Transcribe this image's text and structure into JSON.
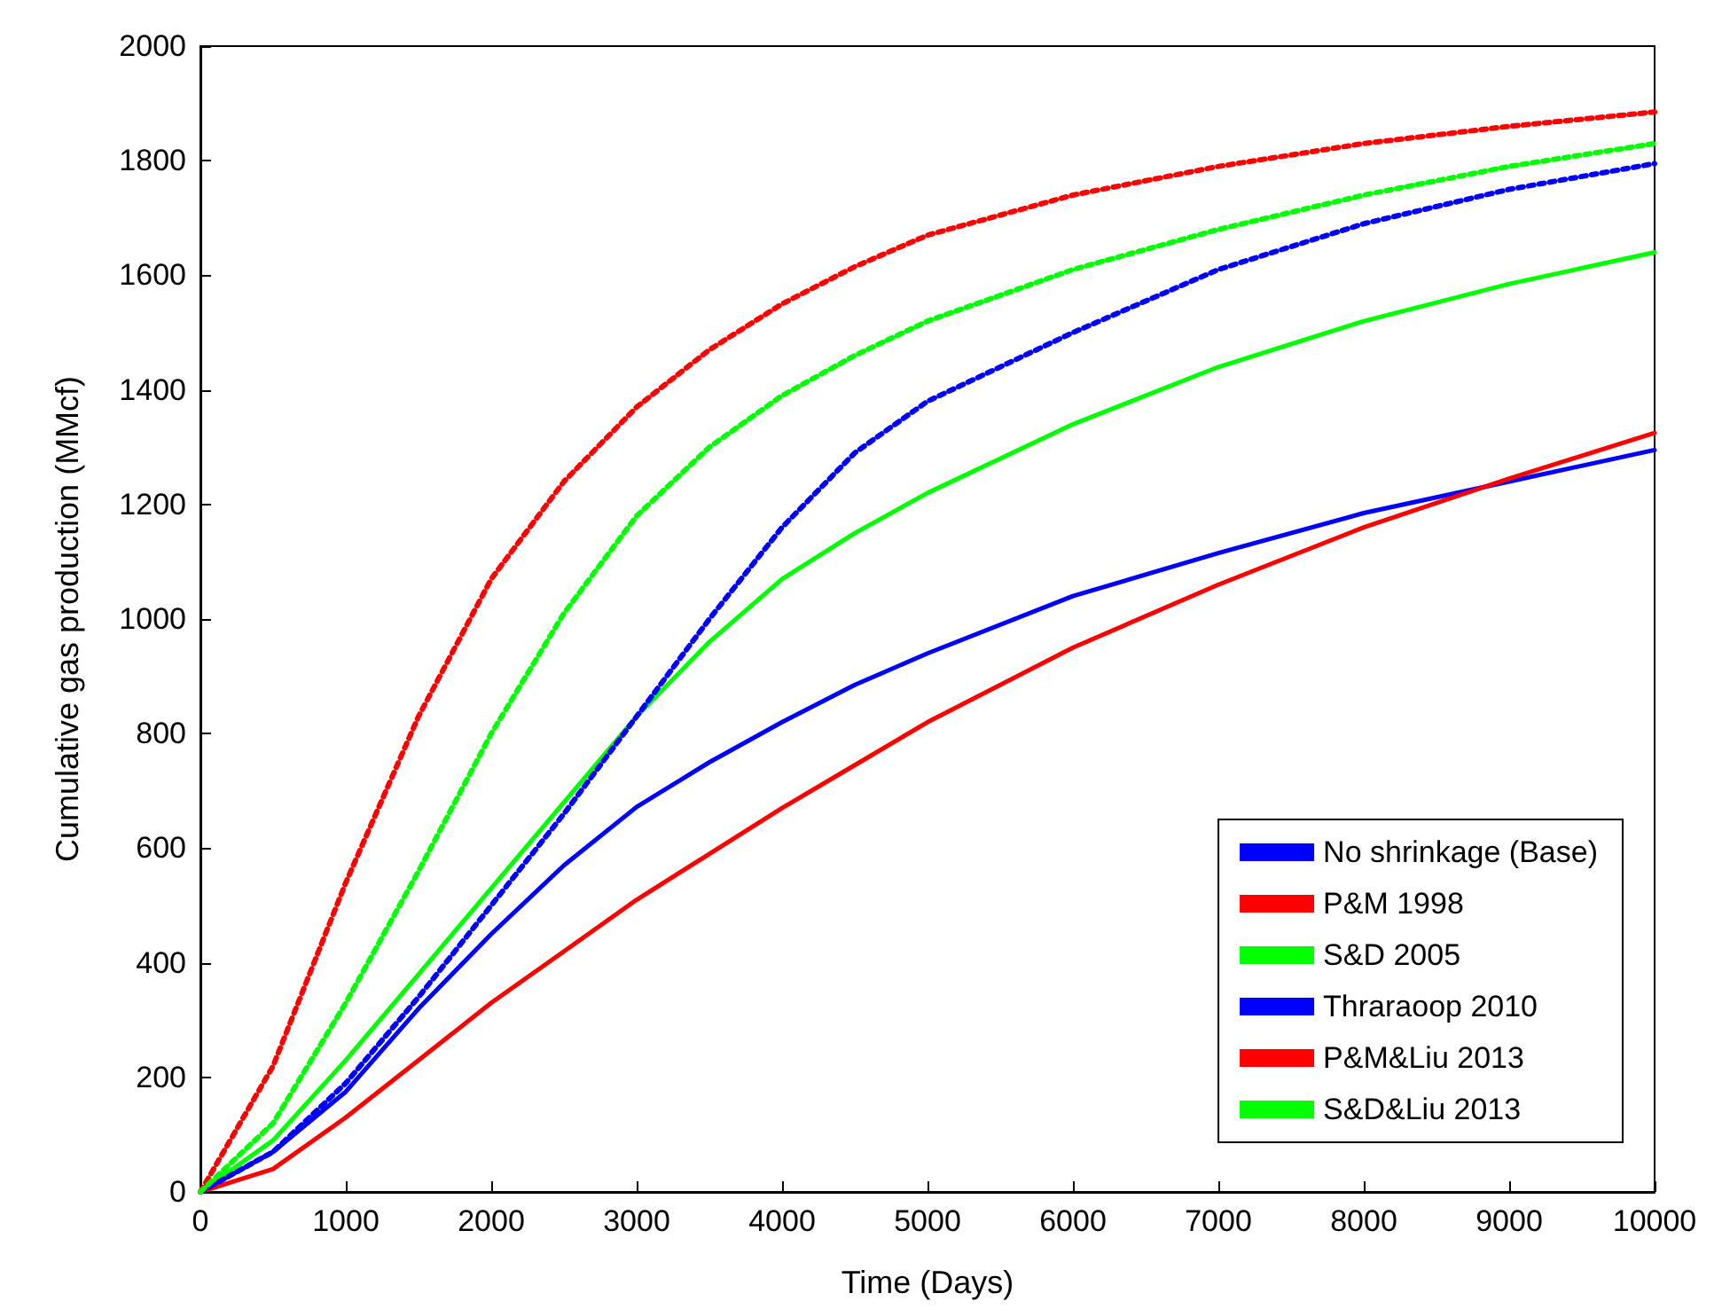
{
  "chart_data": {
    "type": "line",
    "xlabel": "Time (Days)",
    "ylabel": "Cumulative gas production (MMcf)",
    "x": [
      0,
      500,
      1000,
      1500,
      2000,
      2500,
      3000,
      3500,
      4000,
      4500,
      5000,
      6000,
      7000,
      8000,
      9000,
      10000
    ],
    "series": [
      {
        "name": "No shrinkage (Base)",
        "color": "#0000ff",
        "line_style": "solid",
        "values": [
          0,
          70,
          175,
          320,
          450,
          570,
          672,
          750,
          820,
          885,
          940,
          1040,
          1115,
          1185,
          1240,
          1295
        ]
      },
      {
        "name": "P&M 1998",
        "color": "#ff0000",
        "line_style": "solid",
        "values": [
          0,
          40,
          130,
          230,
          330,
          420,
          510,
          590,
          670,
          745,
          820,
          950,
          1060,
          1160,
          1245,
          1325
        ]
      },
      {
        "name": "S&D 2005",
        "color": "#00ff00",
        "line_style": "solid",
        "values": [
          0,
          90,
          230,
          380,
          530,
          680,
          830,
          960,
          1070,
          1150,
          1220,
          1340,
          1440,
          1520,
          1585,
          1640
        ]
      },
      {
        "name": "Thraraoop 2010",
        "color": "#0000ff",
        "line_style": "dotted",
        "values": [
          0,
          70,
          190,
          340,
          500,
          660,
          830,
          1000,
          1160,
          1290,
          1380,
          1500,
          1610,
          1690,
          1750,
          1795
        ]
      },
      {
        "name": "P&M&Liu 2013",
        "color": "#ff0000",
        "line_style": "dotted",
        "values": [
          0,
          220,
          540,
          830,
          1070,
          1240,
          1370,
          1470,
          1550,
          1615,
          1670,
          1740,
          1790,
          1830,
          1860,
          1885
        ]
      },
      {
        "name": "S&D&Liu 2013",
        "color": "#00ff00",
        "line_style": "dotted",
        "values": [
          0,
          120,
          330,
          560,
          800,
          1010,
          1180,
          1300,
          1390,
          1460,
          1520,
          1610,
          1680,
          1740,
          1790,
          1830
        ]
      }
    ],
    "xlim": [
      0,
      10000
    ],
    "xticks": [
      0,
      1000,
      2000,
      3000,
      4000,
      5000,
      6000,
      7000,
      8000,
      9000,
      10000
    ],
    "ylim": [
      0,
      2000
    ],
    "yticks": [
      0,
      200,
      400,
      600,
      800,
      1000,
      1200,
      1400,
      1600,
      1800,
      2000
    ],
    "grid": false,
    "legend": "bottom right",
    "marker": "none"
  }
}
